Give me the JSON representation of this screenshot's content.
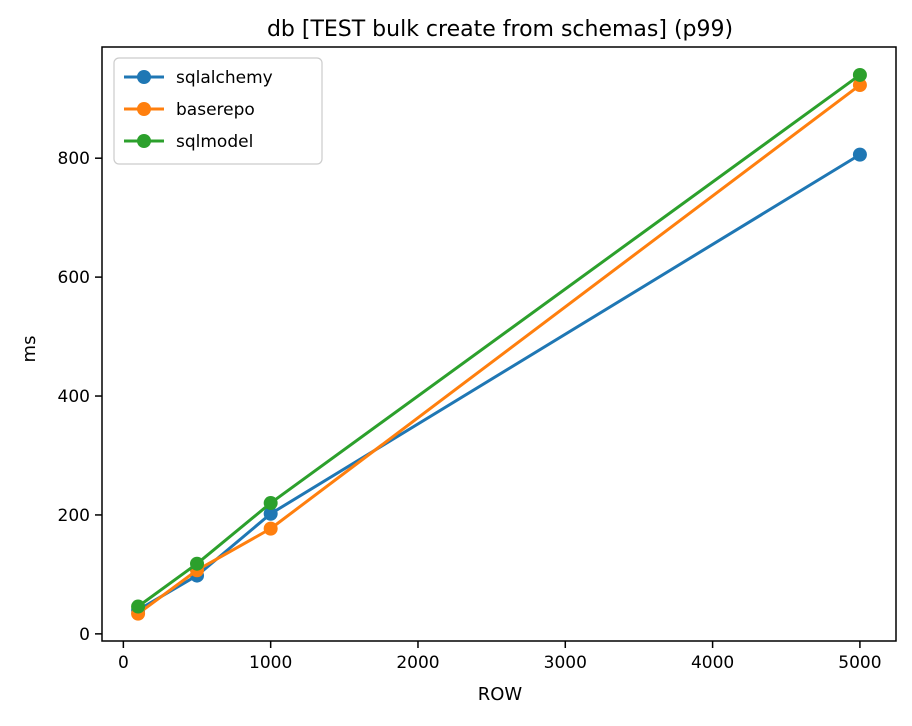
{
  "chart_data": {
    "type": "line",
    "title": "db [TEST bulk create from schemas] (p99)",
    "xlabel": "ROW",
    "ylabel": "ms",
    "xlim": [
      -145,
      5245
    ],
    "ylim": [
      -12,
      987
    ],
    "xticks": [
      0,
      1000,
      2000,
      3000,
      4000,
      5000
    ],
    "yticks": [
      0,
      200,
      400,
      600,
      800
    ],
    "grid": false,
    "legend_position": "top-left",
    "series": [
      {
        "name": "sqlalchemy",
        "color": "#1f77b4",
        "x": [
          100,
          500,
          1000,
          5000
        ],
        "y": [
          40,
          98,
          202,
          806
        ]
      },
      {
        "name": "baserepo",
        "color": "#ff7f0e",
        "x": [
          100,
          500,
          1000,
          5000
        ],
        "y": [
          34,
          107,
          177,
          923
        ]
      },
      {
        "name": "sqlmodel",
        "color": "#2ca02c",
        "x": [
          100,
          500,
          1000,
          5000
        ],
        "y": [
          46,
          118,
          220,
          940
        ]
      }
    ]
  }
}
